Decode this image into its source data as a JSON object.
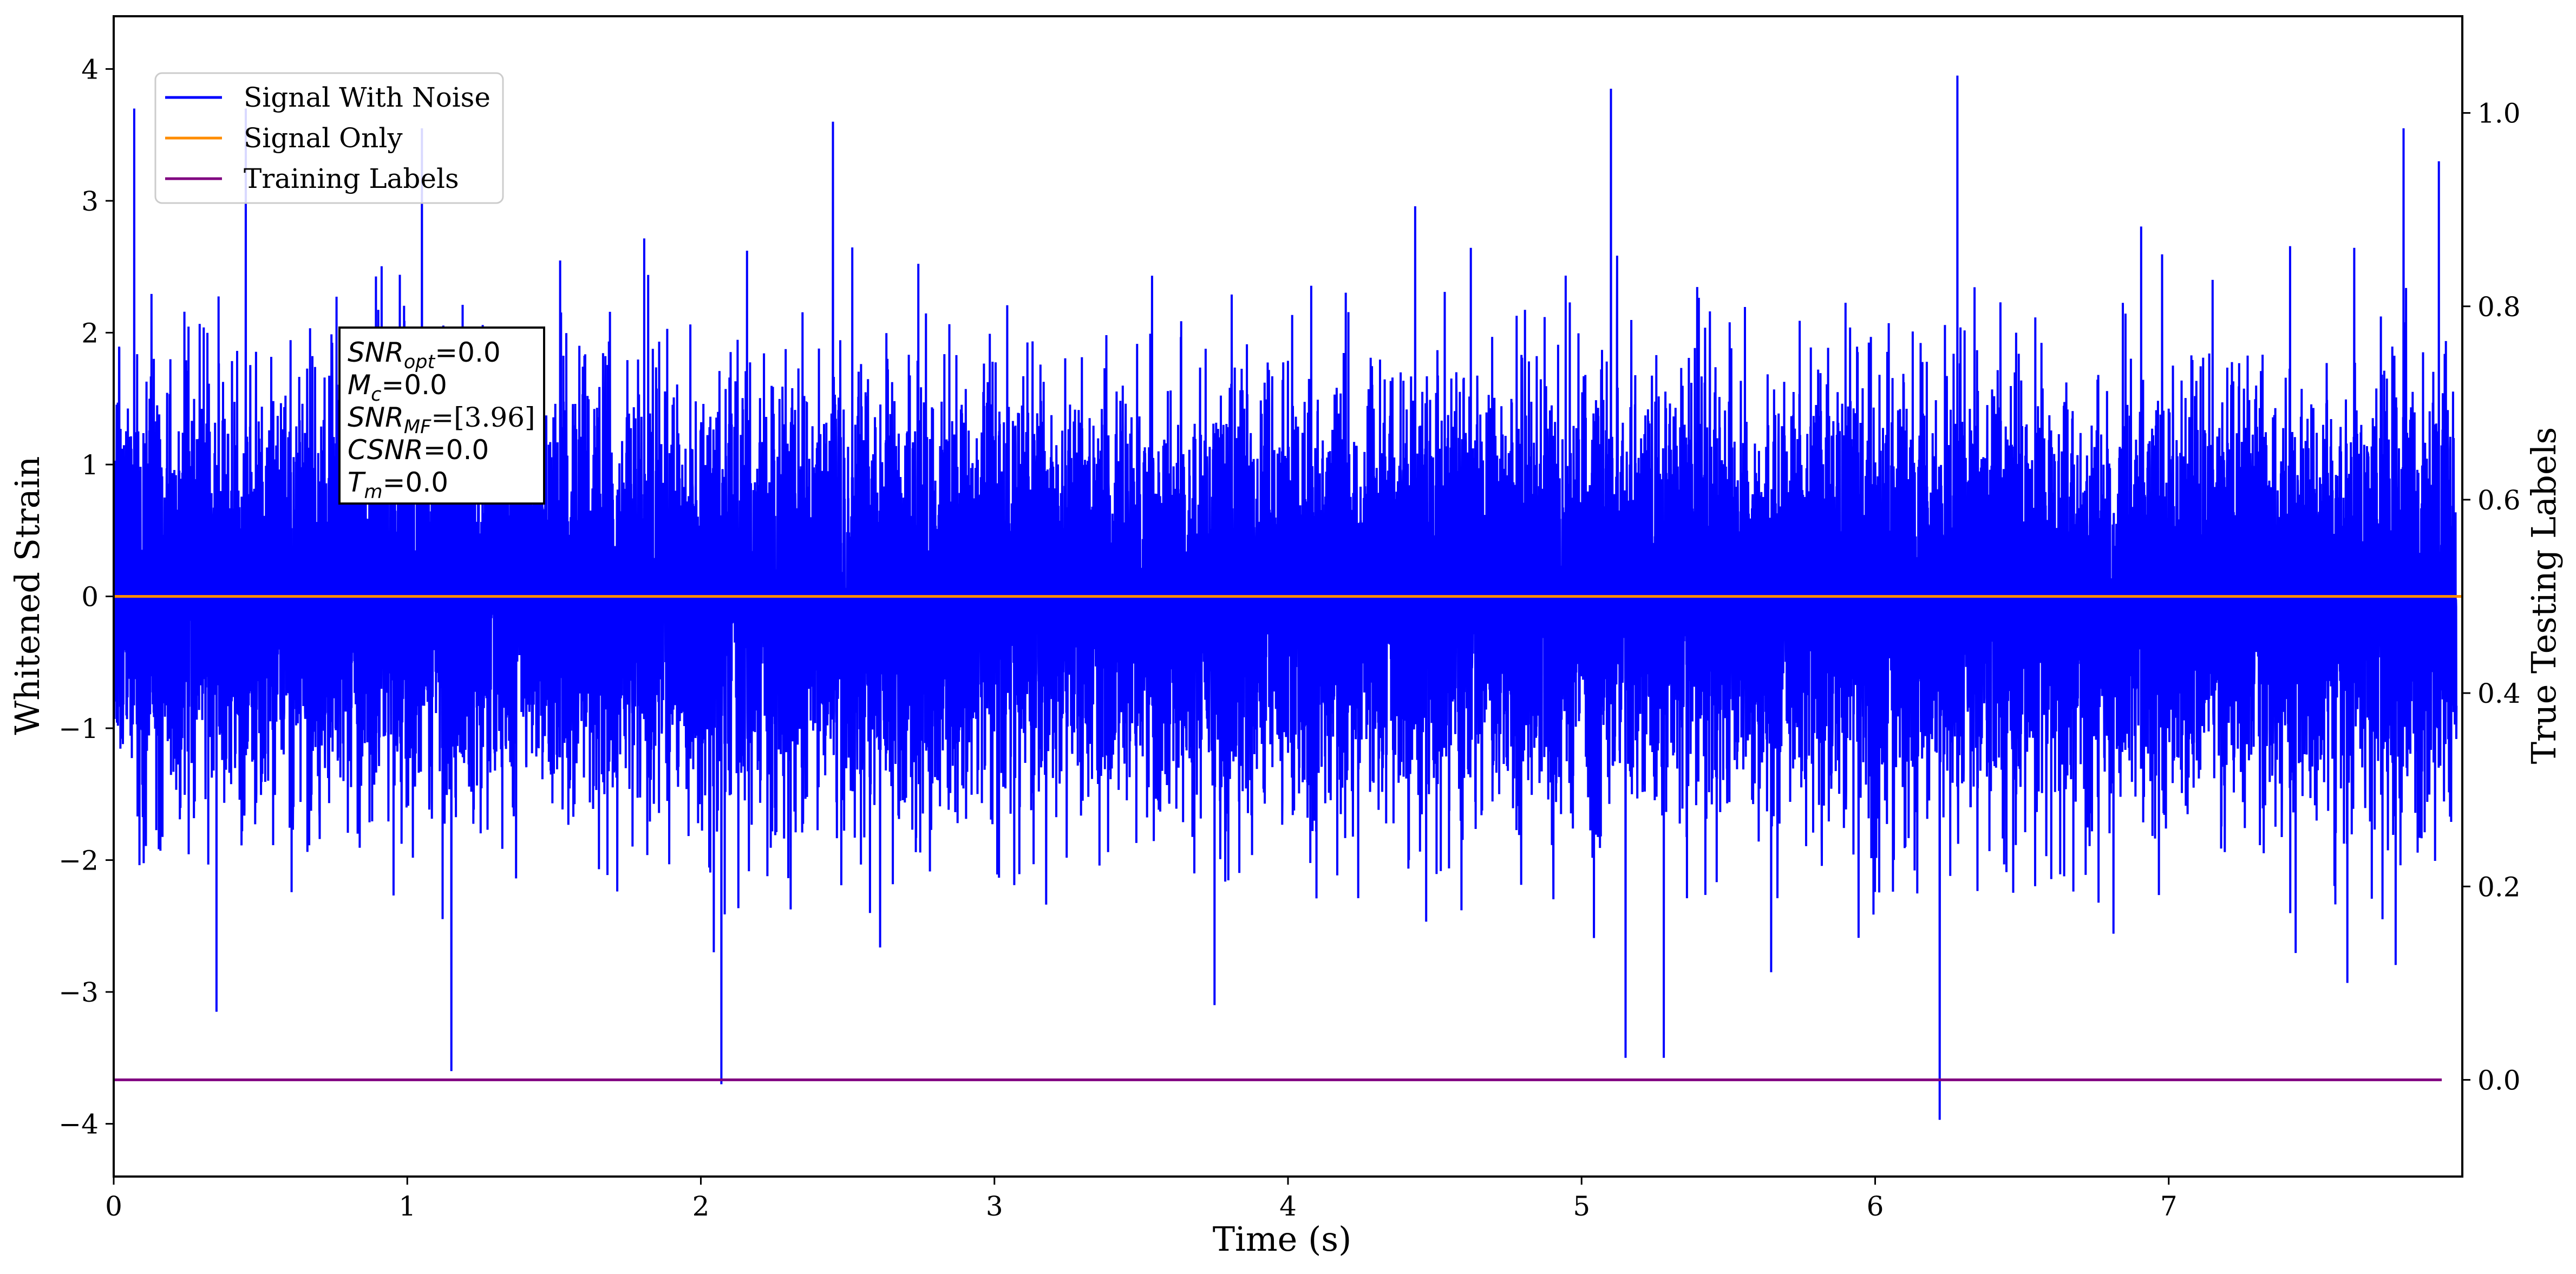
{
  "chart_data": {
    "type": "line",
    "xlabel": "Time (s)",
    "ylabel": "Whitened Strain",
    "y2label": "True Testing Labels",
    "xlim": [
      0,
      8
    ],
    "ylim": [
      -4.4,
      4.4
    ],
    "y2lim": [
      -0.1,
      1.1
    ],
    "xticks": [
      0,
      1,
      2,
      3,
      4,
      5,
      6,
      7
    ],
    "yticks": [
      -4,
      -3,
      -2,
      -1,
      0,
      1,
      2,
      3,
      4
    ],
    "y2ticks": [
      0.0,
      0.2,
      0.4,
      0.6,
      0.8,
      1.0
    ],
    "grid": false,
    "legend_position": "top-left",
    "series": [
      {
        "name": "Signal With Noise",
        "color": "#0000ff",
        "axis": "left",
        "description": "whitened noise, approximately uniform over 0-8 s",
        "typical_range": [
          -1.8,
          1.8
        ],
        "notable_peaks": [
          {
            "x": 0.07,
            "y": 3.7
          },
          {
            "x": 0.45,
            "y": 3.7
          },
          {
            "x": 1.05,
            "y": 3.55
          },
          {
            "x": 2.45,
            "y": 3.6
          },
          {
            "x": 5.1,
            "y": 3.85
          },
          {
            "x": 6.22,
            "y": 4.0
          },
          {
            "x": 6.28,
            "y": 3.95
          },
          {
            "x": 7.8,
            "y": 3.55
          },
          {
            "x": 7.92,
            "y": 3.3
          }
        ],
        "notable_troughs": [
          {
            "x": 1.15,
            "y": -3.6
          },
          {
            "x": 2.07,
            "y": -3.7
          },
          {
            "x": 6.22,
            "y": -3.97
          },
          {
            "x": 0.35,
            "y": -3.15
          },
          {
            "x": 3.75,
            "y": -3.1
          },
          {
            "x": 5.15,
            "y": -3.5
          },
          {
            "x": 5.28,
            "y": -3.5
          }
        ]
      },
      {
        "name": "Signal Only",
        "color": "#ff8c00",
        "axis": "left",
        "x": [
          0,
          8
        ],
        "y": [
          0,
          0
        ]
      },
      {
        "name": "Training Labels",
        "color": "#800080",
        "axis": "right",
        "x": [
          0,
          7.93
        ],
        "y": [
          0,
          0
        ]
      }
    ],
    "annotations": [
      {
        "label": "SNR",
        "sub": "opt",
        "value": "=0.0"
      },
      {
        "label": "M",
        "sub": "c",
        "value": "=0.0"
      },
      {
        "label": "SNR",
        "sub": "MF",
        "value": "=[3.96]"
      },
      {
        "label": "CSNR",
        "sub": "",
        "value": "=0.0"
      },
      {
        "label": "T",
        "sub": "m",
        "value": "=0.0"
      }
    ]
  }
}
